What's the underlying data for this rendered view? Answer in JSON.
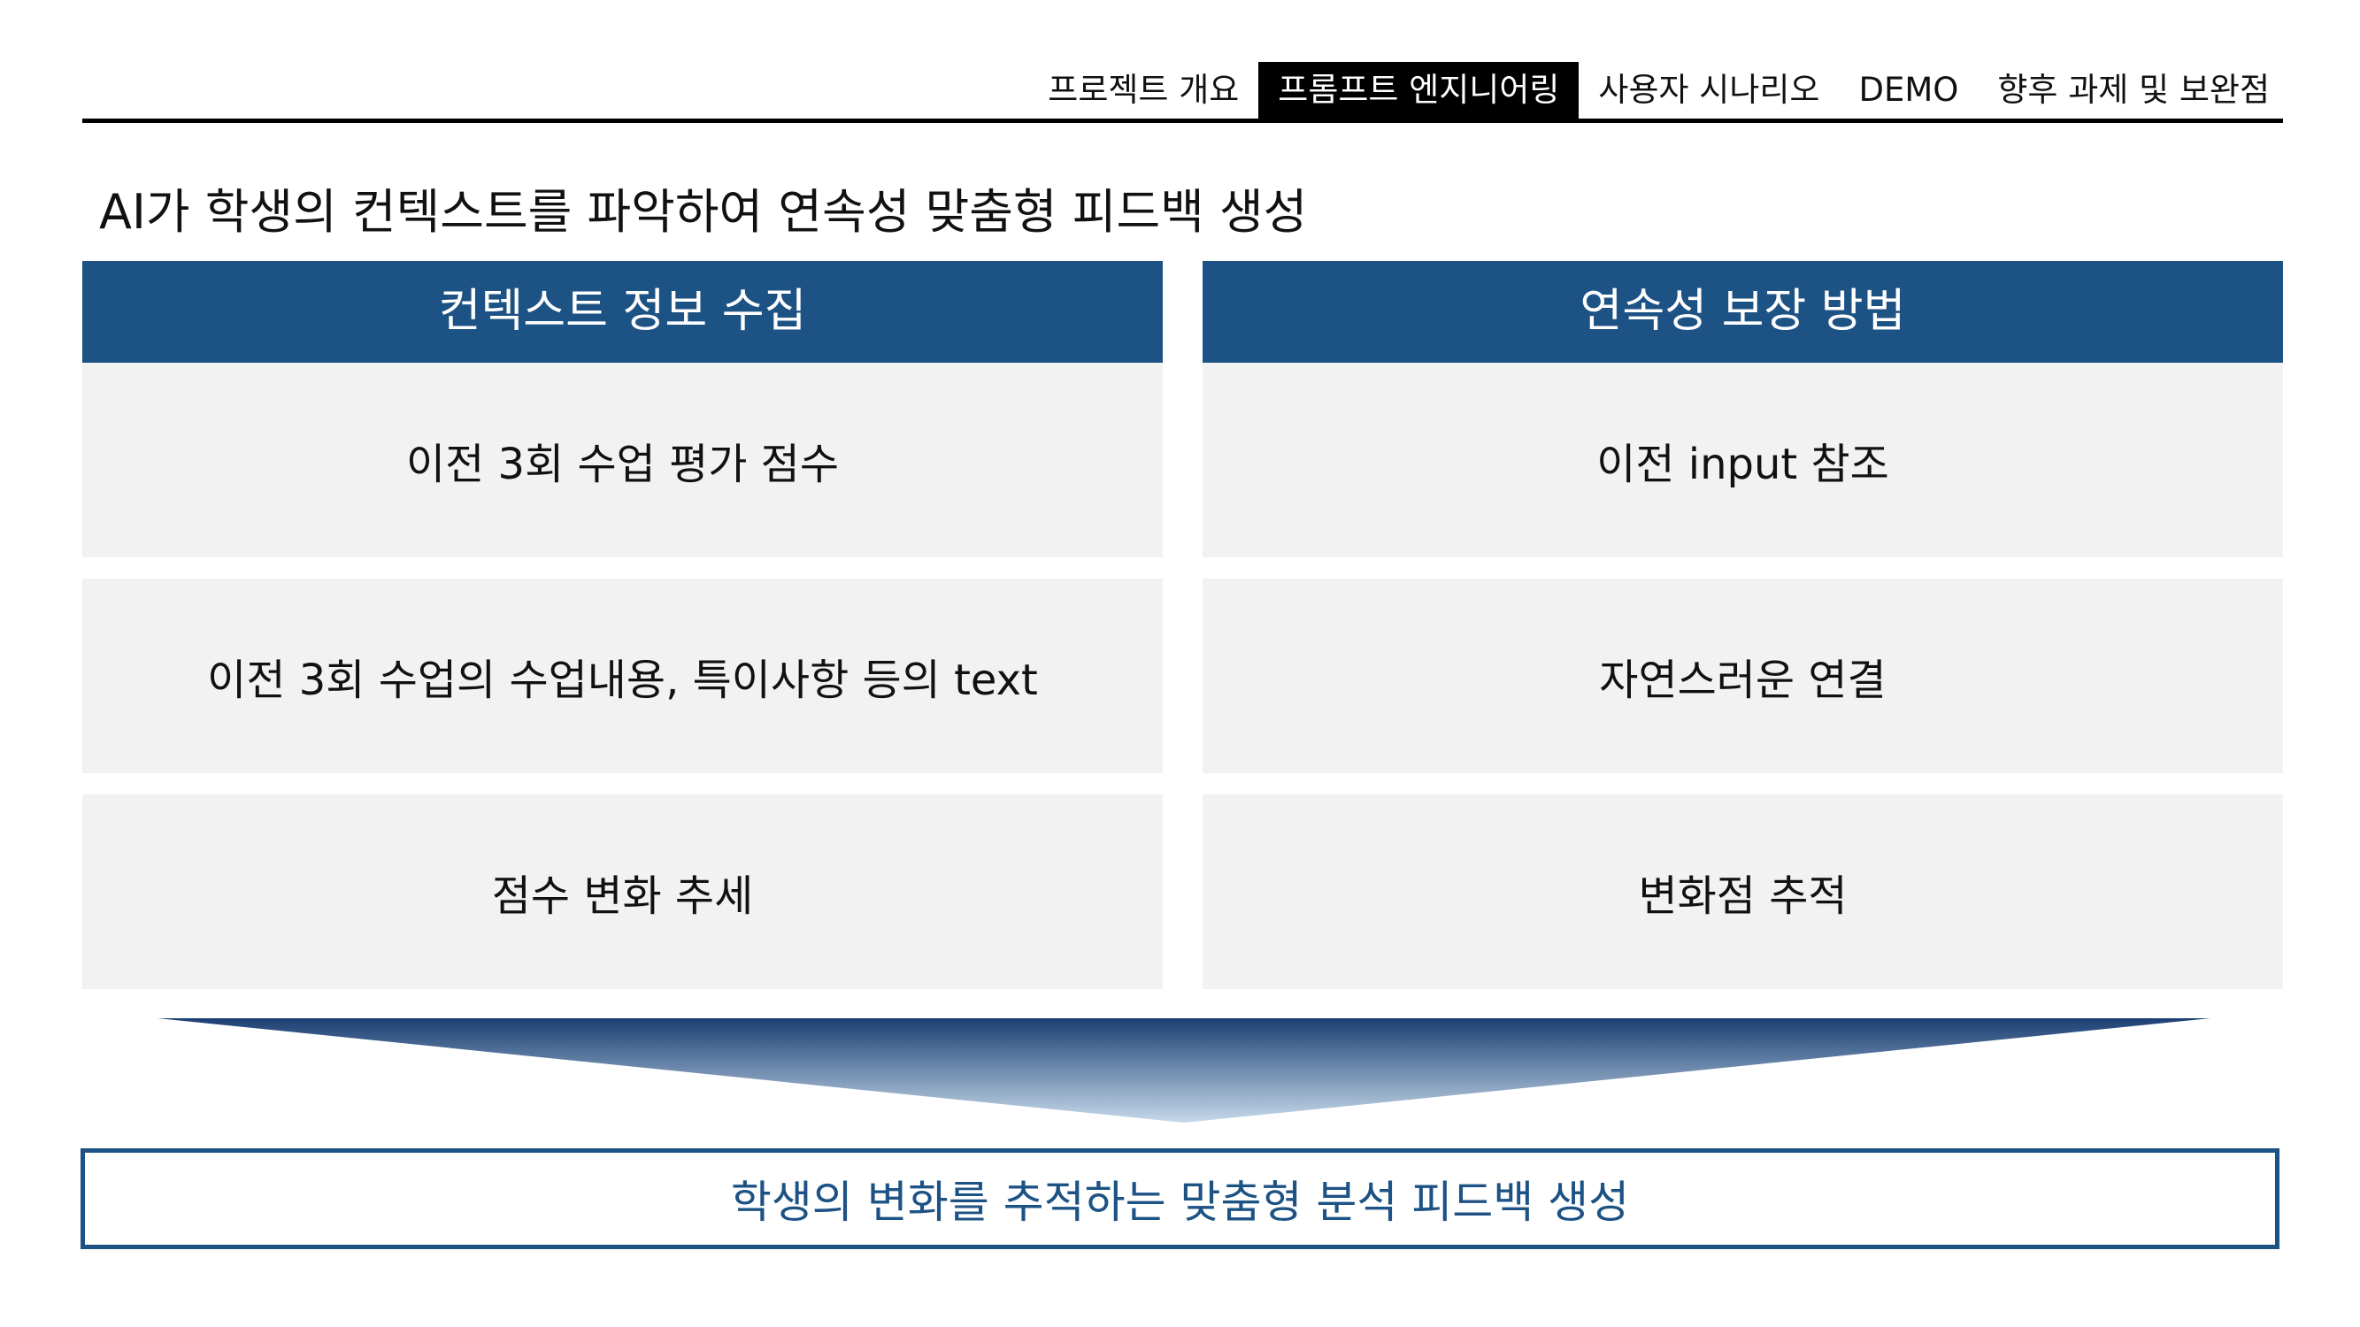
{
  "nav": {
    "tabs": [
      {
        "label": "프로젝트 개요",
        "active": false
      },
      {
        "label": "프롬프트 엔지니어링",
        "active": true
      },
      {
        "label": "사용자 시나리오",
        "active": false
      },
      {
        "label": "DEMO",
        "active": false
      },
      {
        "label": "향후 과제 및 보완점",
        "active": false
      }
    ]
  },
  "headline": "AI가 학생의 컨텍스트를 파악하여 연속성 맞춤형 피드백 생성",
  "left_column": {
    "title": "컨텍스트 정보 수집",
    "items": [
      "이전 3회 수업 평가 점수",
      "이전 3회 수업의 수업내용, 특이사항 등의 text",
      "점수 변화 추세"
    ]
  },
  "right_column": {
    "title": "연속성 보장 방법",
    "items": [
      "이전 input 참조",
      "자연스러운 연결",
      "변화점 추적"
    ]
  },
  "result": "학생의 변화를 추적하는 맞춤형 분석 피드백 생성",
  "colors": {
    "accent": "#1d5284",
    "arrow_top": "#1b3f73",
    "arrow_bottom": "#c6d9ea",
    "item_bg": "#f2f2f2"
  }
}
